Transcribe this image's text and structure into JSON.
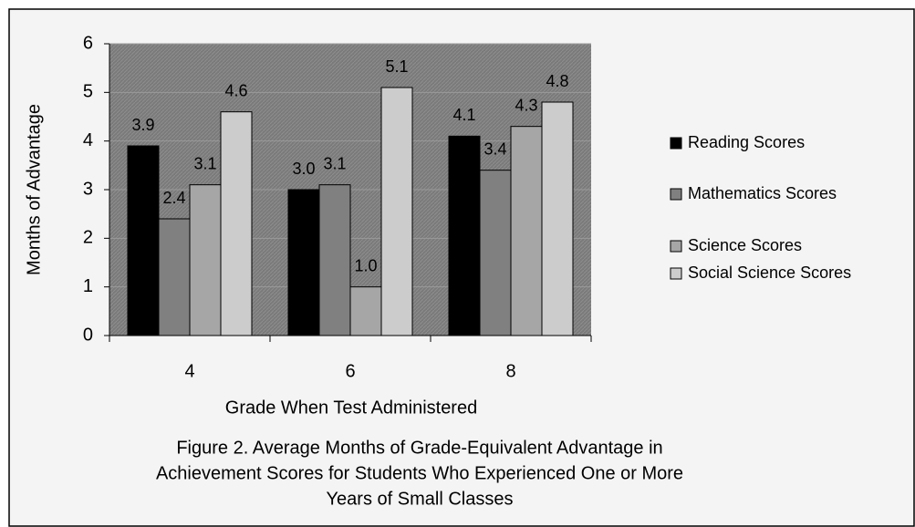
{
  "chart_data": {
    "type": "bar",
    "caption": [
      "Figure 2. Average Months of Grade-Equivalent Advantage in",
      "Achievement Scores for Students Who Experienced One or More",
      "Years of Small Classes"
    ],
    "x_label": "Grade When Test Administered",
    "y_label": "Months of Advantage",
    "categories": [
      "4",
      "6",
      "8"
    ],
    "series": [
      {
        "name": "Reading Scores",
        "color": "#000000",
        "values": [
          3.9,
          3.0,
          4.1
        ],
        "value_labels": [
          "3.9",
          "3.0",
          "4.1"
        ]
      },
      {
        "name": "Mathematics Scores",
        "color": "#808080",
        "values": [
          2.4,
          3.1,
          3.4
        ],
        "value_labels": [
          "2.4",
          "3.1",
          "3.4"
        ]
      },
      {
        "name": "Science Scores",
        "color": "#a6a6a6",
        "values": [
          3.1,
          1.0,
          4.3
        ],
        "value_labels": [
          "3.1",
          "1.0",
          "4.3"
        ]
      },
      {
        "name": "Social Science Scores",
        "color": "#cccccc",
        "values": [
          4.6,
          5.1,
          4.8
        ],
        "value_labels": [
          "4.6",
          "5.1",
          "4.8"
        ]
      }
    ],
    "ylim": [
      0,
      6
    ],
    "yticks": [
      0,
      1,
      2,
      3,
      4,
      5,
      6
    ],
    "grid": true,
    "legend": "right"
  }
}
